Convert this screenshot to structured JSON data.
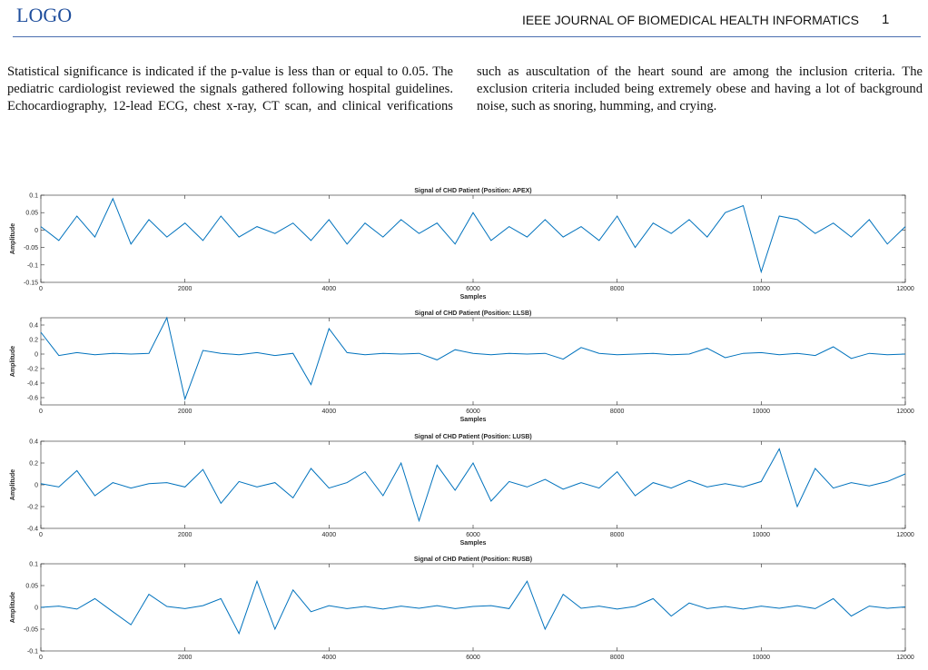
{
  "header": {
    "logo": "LOGO",
    "journal": "IEEE JOURNAL OF BIOMEDICAL HEALTH INFORMATICS",
    "page": "1"
  },
  "body": {
    "paragraph": "Statistical significance is indicated if the p-value is less than or equal to 0.05. The pediatric cardiologist reviewed the signals gathered following hospital guidelines. Echocardiography, 12-lead ECG, chest x-ray, CT scan, and clinical verifications such as auscultation of the heart sound are among the inclusion criteria. The exclusion criteria included being extremely obese and having a lot of background noise, such as snoring, humming, and crying."
  },
  "chart_data": [
    {
      "type": "line",
      "title": "Signal of CHD Patient (Position: APEX)",
      "xlabel": "Samples",
      "ylabel": "Amplitude",
      "color": "#0072bd",
      "x": [
        0,
        250,
        500,
        750,
        1000,
        1250,
        1500,
        1750,
        2000,
        2250,
        2500,
        2750,
        3000,
        3250,
        3500,
        3750,
        4000,
        4250,
        4500,
        4750,
        5000,
        5250,
        5500,
        5750,
        6000,
        6250,
        6500,
        6750,
        7000,
        7250,
        7500,
        7750,
        8000,
        8250,
        8500,
        8750,
        9000,
        9250,
        9500,
        9750,
        10000,
        10250,
        10500,
        10750,
        11000,
        11250,
        11500,
        11750,
        12000
      ],
      "values": [
        0.01,
        -0.03,
        0.04,
        -0.02,
        0.09,
        -0.04,
        0.03,
        -0.02,
        0.02,
        -0.03,
        0.04,
        -0.02,
        0.01,
        -0.01,
        0.02,
        -0.03,
        0.03,
        -0.04,
        0.02,
        -0.02,
        0.03,
        -0.01,
        0.02,
        -0.04,
        0.05,
        -0.03,
        0.01,
        -0.02,
        0.03,
        -0.02,
        0.01,
        -0.03,
        0.04,
        -0.05,
        0.02,
        -0.01,
        0.03,
        -0.02,
        0.05,
        0.07,
        -0.12,
        0.04,
        0.03,
        -0.01,
        0.02,
        -0.02,
        0.03,
        -0.04,
        0.01
      ],
      "xlim": [
        0,
        12000
      ],
      "xticks": [
        0,
        2000,
        4000,
        6000,
        8000,
        10000,
        12000
      ],
      "ylim": [
        -0.15,
        0.1
      ],
      "yticks": [
        -0.15,
        -0.1,
        -0.05,
        0,
        0.05,
        0.1
      ]
    },
    {
      "type": "line",
      "title": "Signal of CHD Patient (Position: LLSB)",
      "xlabel": "Samples",
      "ylabel": "Amplitude",
      "color": "#0072bd",
      "x": [
        0,
        250,
        500,
        750,
        1000,
        1250,
        1500,
        1750,
        2000,
        2250,
        2500,
        2750,
        3000,
        3250,
        3500,
        3750,
        4000,
        4250,
        4500,
        4750,
        5000,
        5250,
        5500,
        5750,
        6000,
        6250,
        6500,
        6750,
        7000,
        7250,
        7500,
        7750,
        8000,
        8250,
        8500,
        8750,
        9000,
        9250,
        9500,
        9750,
        10000,
        10250,
        10500,
        10750,
        11000,
        11250,
        11500,
        11750,
        12000
      ],
      "values": [
        0.3,
        -0.02,
        0.02,
        -0.01,
        0.01,
        0.0,
        0.01,
        0.5,
        -0.62,
        0.05,
        0.01,
        -0.01,
        0.02,
        -0.02,
        0.01,
        -0.42,
        0.35,
        0.02,
        -0.01,
        0.01,
        0.0,
        0.01,
        -0.08,
        0.06,
        0.01,
        -0.01,
        0.01,
        0.0,
        0.01,
        -0.07,
        0.09,
        0.01,
        -0.01,
        0.0,
        0.01,
        -0.01,
        0.0,
        0.08,
        -0.05,
        0.01,
        0.02,
        -0.01,
        0.01,
        -0.02,
        0.1,
        -0.06,
        0.01,
        -0.01,
        0.0
      ],
      "xlim": [
        0,
        12000
      ],
      "xticks": [
        0,
        2000,
        4000,
        6000,
        8000,
        10000,
        12000
      ],
      "ylim": [
        -0.7,
        0.5
      ],
      "yticks": [
        -0.6,
        -0.4,
        -0.2,
        0,
        0.2,
        0.4
      ]
    },
    {
      "type": "line",
      "title": "Signal of CHD Patient (Position: LUSB)",
      "xlabel": "Samples",
      "ylabel": "Amplitude",
      "color": "#0072bd",
      "x": [
        0,
        250,
        500,
        750,
        1000,
        1250,
        1500,
        1750,
        2000,
        2250,
        2500,
        2750,
        3000,
        3250,
        3500,
        3750,
        4000,
        4250,
        4500,
        4750,
        5000,
        5250,
        5500,
        5750,
        6000,
        6250,
        6500,
        6750,
        7000,
        7250,
        7500,
        7750,
        8000,
        8250,
        8500,
        8750,
        9000,
        9250,
        9500,
        9750,
        10000,
        10250,
        10500,
        10750,
        11000,
        11250,
        11500,
        11750,
        12000
      ],
      "values": [
        0.01,
        -0.02,
        0.13,
        -0.1,
        0.02,
        -0.03,
        0.01,
        0.02,
        -0.02,
        0.14,
        -0.17,
        0.03,
        -0.02,
        0.02,
        -0.12,
        0.15,
        -0.03,
        0.02,
        0.12,
        -0.1,
        0.2,
        -0.33,
        0.18,
        -0.05,
        0.2,
        -0.15,
        0.03,
        -0.02,
        0.05,
        -0.04,
        0.02,
        -0.03,
        0.12,
        -0.1,
        0.02,
        -0.03,
        0.04,
        -0.02,
        0.01,
        -0.02,
        0.03,
        0.33,
        -0.2,
        0.15,
        -0.03,
        0.02,
        -0.01,
        0.03,
        0.1
      ],
      "xlim": [
        0,
        12000
      ],
      "xticks": [
        0,
        2000,
        4000,
        6000,
        8000,
        10000,
        12000
      ],
      "ylim": [
        -0.4,
        0.4
      ],
      "yticks": [
        -0.4,
        -0.2,
        0,
        0.2,
        0.4
      ]
    },
    {
      "type": "line",
      "title": "Signal of CHD Patient (Position: RUSB)",
      "ylabel": "Amplitude",
      "color": "#0072bd",
      "x": [
        0,
        250,
        500,
        750,
        1000,
        1250,
        1500,
        1750,
        2000,
        2250,
        2500,
        2750,
        3000,
        3250,
        3500,
        3750,
        4000,
        4250,
        4500,
        4750,
        5000,
        5250,
        5500,
        5750,
        6000,
        6250,
        6500,
        6750,
        7000,
        7250,
        7500,
        7750,
        8000,
        8250,
        8500,
        8750,
        9000,
        9250,
        9500,
        9750,
        10000,
        10250,
        10500,
        10750,
        11000,
        11250,
        11500,
        11750,
        12000
      ],
      "values": [
        0.0,
        0.003,
        -0.004,
        0.02,
        -0.01,
        -0.04,
        0.03,
        0.002,
        -0.003,
        0.004,
        0.02,
        -0.06,
        0.06,
        -0.05,
        0.04,
        -0.01,
        0.004,
        -0.003,
        0.002,
        -0.004,
        0.003,
        -0.002,
        0.004,
        -0.003,
        0.002,
        0.004,
        -0.003,
        0.06,
        -0.05,
        0.03,
        -0.002,
        0.003,
        -0.004,
        0.002,
        0.02,
        -0.02,
        0.01,
        -0.003,
        0.002,
        -0.004,
        0.003,
        -0.002,
        0.004,
        -0.003,
        0.02,
        -0.02,
        0.003,
        -0.002,
        0.001
      ],
      "xlim": [
        0,
        12000
      ],
      "xticks": [
        0,
        2000,
        4000,
        6000,
        8000,
        10000,
        12000
      ],
      "ylim": [
        -0.1,
        0.1
      ],
      "yticks": [
        -0.1,
        -0.05,
        0,
        0.05,
        0.1
      ]
    }
  ]
}
